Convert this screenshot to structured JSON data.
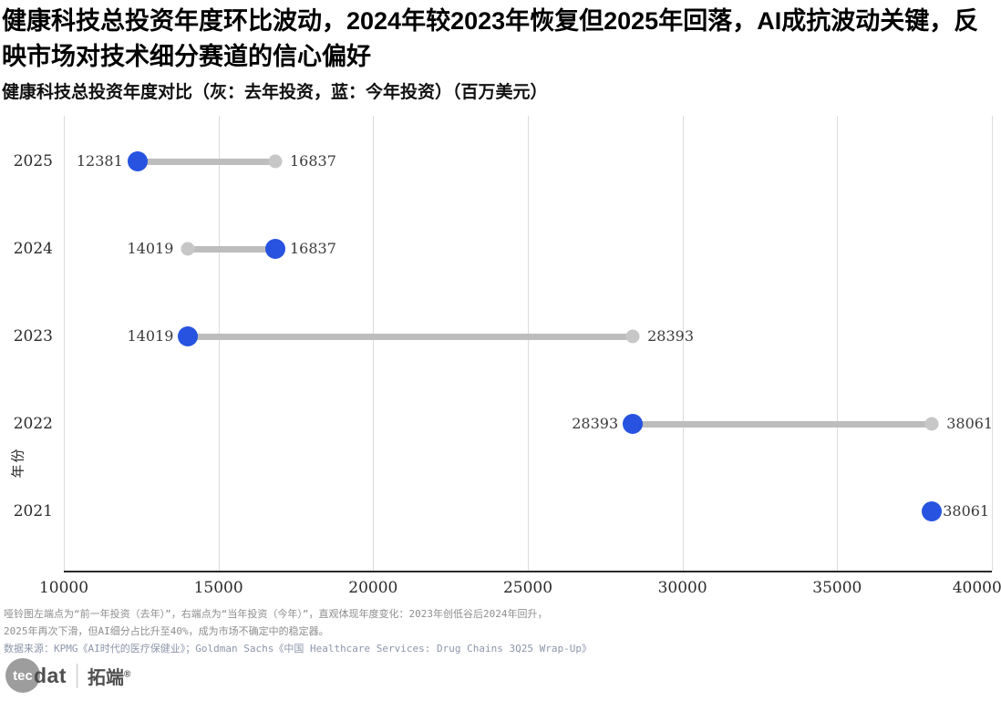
{
  "header": {
    "title": "健康科技总投资年度环比波动，2024年较2023年恢复但2025年回落，AI成抗波动关键，反映市场对技术细分赛道的信心偏好",
    "subtitle": "健康科技总投资年度对比（灰：去年投资，蓝：今年投资）（百万美元）"
  },
  "chart_data": {
    "type": "dumbbell",
    "title": "健康科技总投资年度对比",
    "ylabel": "年份",
    "xlabel": "",
    "unit": "百万美元",
    "legend": {
      "previous": "去年投资（灰）",
      "current": "今年投资（蓝）"
    },
    "x_axis": {
      "min": 10000,
      "max": 40000,
      "step": 5000,
      "ticks": [
        10000,
        15000,
        20000,
        25000,
        30000,
        35000,
        40000
      ]
    },
    "rows": [
      {
        "year": "2025",
        "current": 12381,
        "previous": 16837
      },
      {
        "year": "2024",
        "current": 16837,
        "previous": 14019
      },
      {
        "year": "2023",
        "current": 14019,
        "previous": 28393
      },
      {
        "year": "2022",
        "current": 28393,
        "previous": 38061
      },
      {
        "year": "2021",
        "current": 38061,
        "previous": null
      }
    ],
    "colors": {
      "current": "#2753e0",
      "previous": "#c7c7c7",
      "connector": "#bdbdbd",
      "gridline": "#dcdcdc",
      "axis": "#2b2b2b"
    }
  },
  "footnotes": {
    "line1": "哑铃图左端点为“前一年投资（去年）”，右端点为“当年投资（今年）”，直观体现年度变化：2023年创低谷后2024年回升，",
    "line2": "2025年再次下滑，但AI细分占比升至40%，成为市场不确定中的稳定器。",
    "source": "数据来源：KPMG《AI时代的医疗保健业》；Goldman Sachs《中国 Healthcare Services: Drug Chains 3Q25 Wrap-Up》"
  },
  "logo": {
    "circle_text": "tec",
    "text": "dat",
    "brand": "拓端",
    "reg": "®"
  }
}
